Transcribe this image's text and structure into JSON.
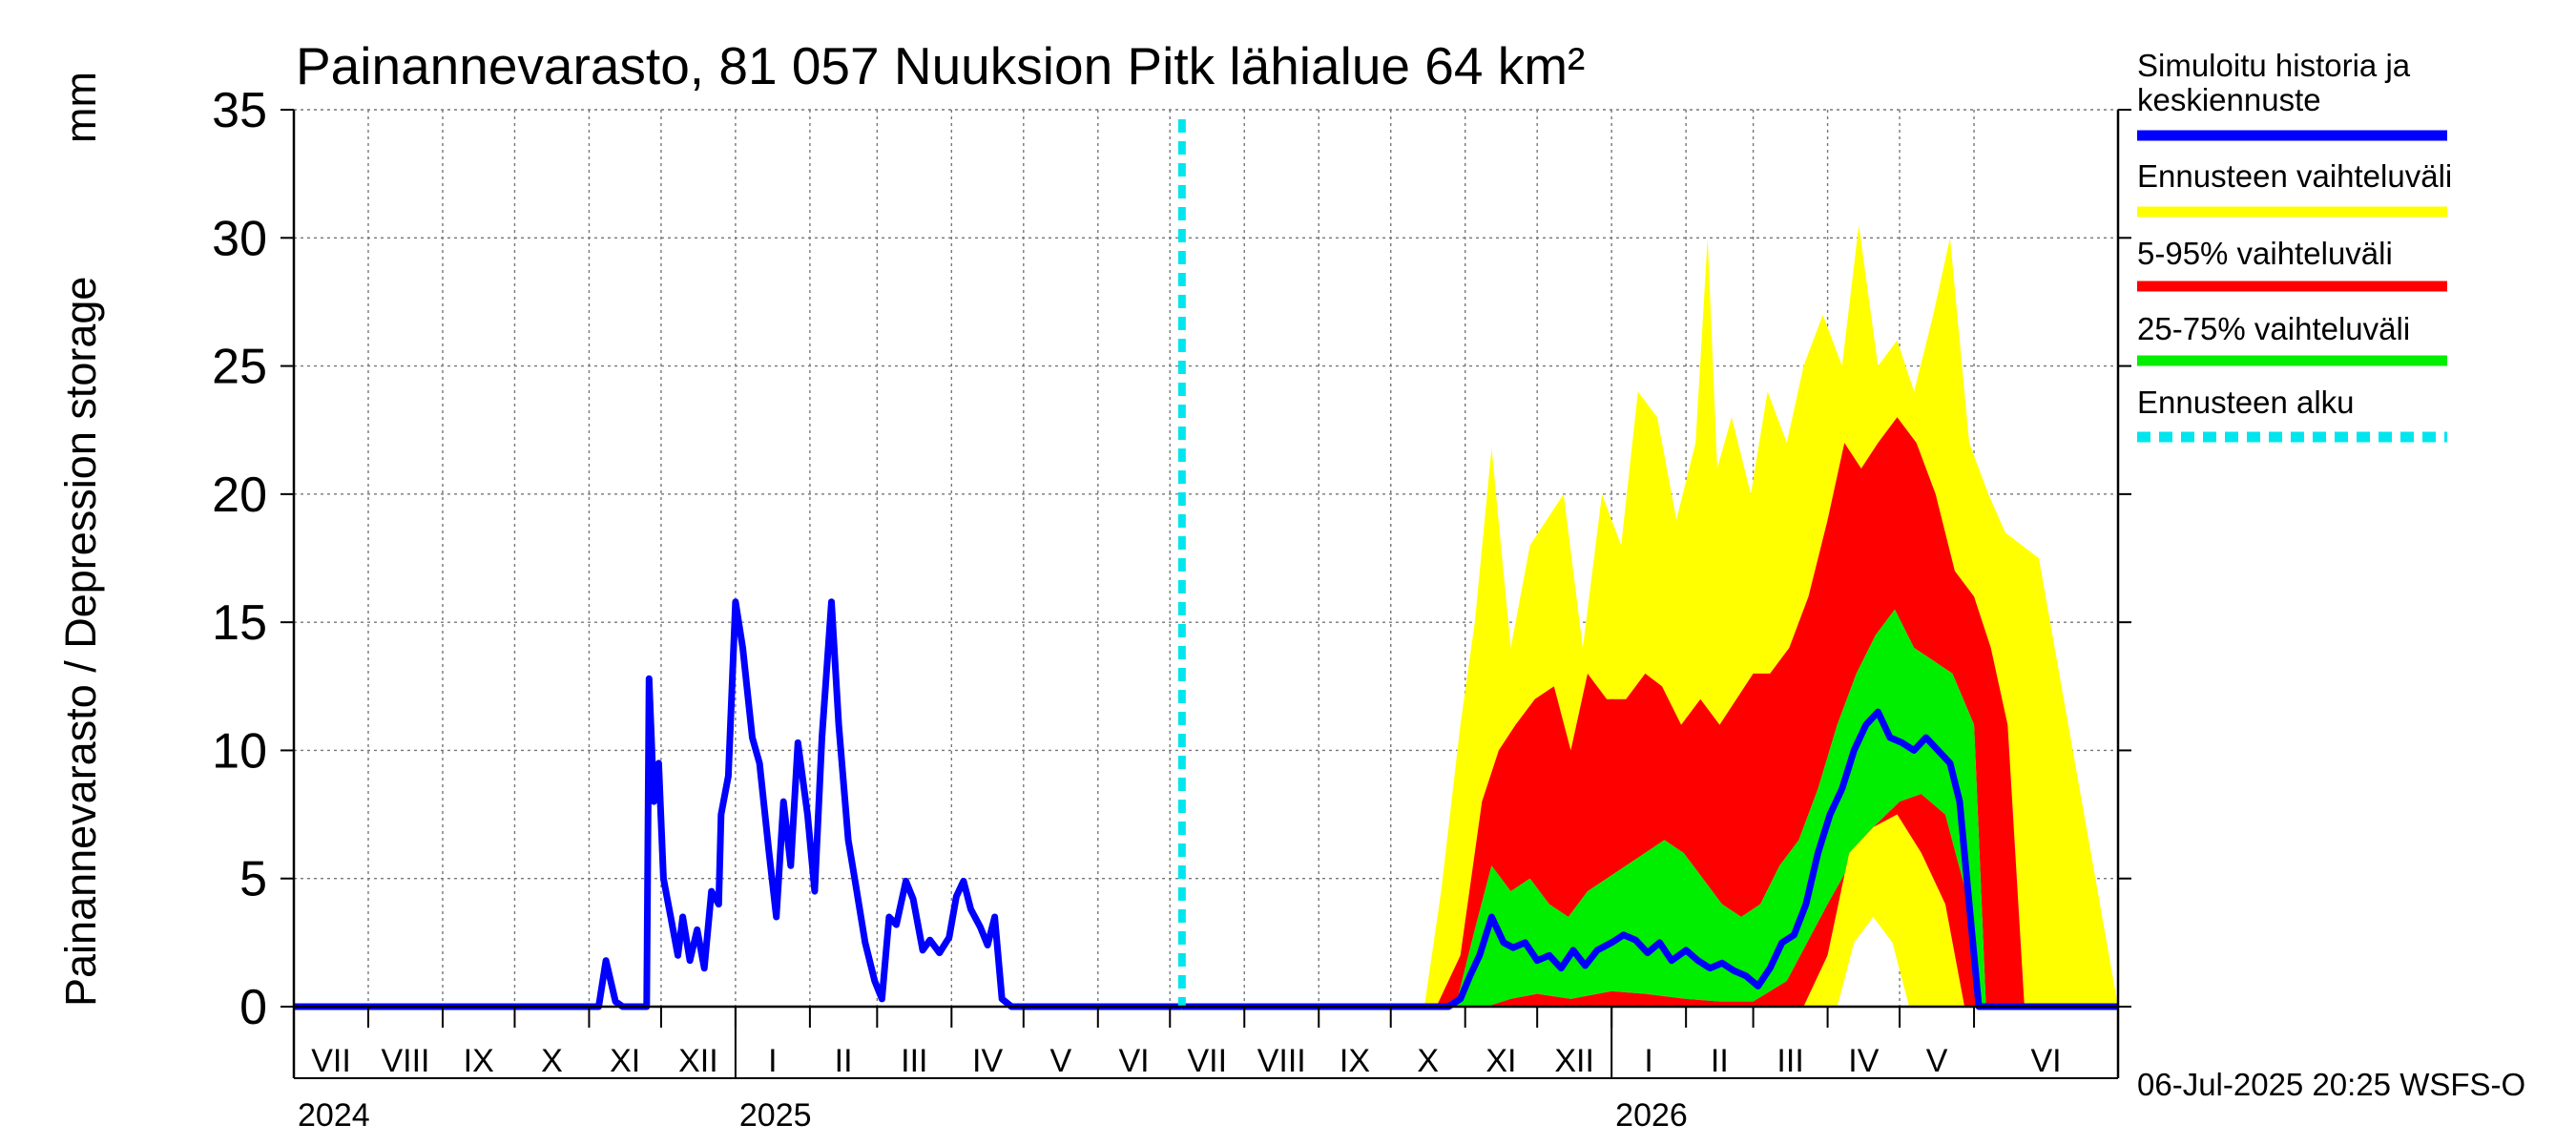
{
  "chart_data": {
    "type": "area",
    "title": "Painannevarasto, 81 057 Nuuksion Pitk lähialue 64 km²",
    "ylabel": "Painannevarasto / Depression storage",
    "yunit": "mm",
    "ylim": [
      0,
      35
    ],
    "yticks": [
      0,
      5,
      10,
      15,
      20,
      25,
      30,
      35
    ],
    "xlim": [
      "2024-07-01",
      "2026-07-31"
    ],
    "months": [
      "VII",
      "VIII",
      "IX",
      "X",
      "XI",
      "XII",
      "I",
      "II",
      "III",
      "IV",
      "V",
      "VI",
      "VII",
      "VIII",
      "IX",
      "X",
      "XI",
      "XII",
      "I",
      "II",
      "III",
      "IV",
      "V",
      "VI"
    ],
    "years": [
      {
        "label": "2024",
        "date": "2024-07-01"
      },
      {
        "label": "2025",
        "date": "2025-01-01"
      },
      {
        "label": "2026",
        "date": "2026-01-01"
      }
    ],
    "forecast_start": "2025-07-06",
    "grid": true,
    "legend_position": "right",
    "legend": [
      {
        "label": "Simuloitu historia ja keskiennuste",
        "color": "#0000ff",
        "style": "solid"
      },
      {
        "label": "Ennusteen vaihteluväli",
        "color": "#ffff00",
        "style": "solid"
      },
      {
        "label": "5-95% vaihteluväli",
        "color": "#ff0000",
        "style": "solid"
      },
      {
        "label": "25-75% vaihteluväli",
        "color": "#00ee00",
        "style": "solid"
      },
      {
        "label": "Ennusteen alku",
        "color": "#00e5ee",
        "style": "dashed"
      }
    ],
    "series": [
      {
        "name": "Simuloitu historia ja keskiennuste",
        "role": "history",
        "x": [
          "2024-07-01",
          "2024-11-05",
          "2024-11-08",
          "2024-11-12",
          "2024-11-15",
          "2024-11-25",
          "2024-11-26",
          "2024-11-28",
          "2024-11-30",
          "2024-12-02",
          "2024-12-05",
          "2024-12-08",
          "2024-12-10",
          "2024-12-13",
          "2024-12-16",
          "2024-12-19",
          "2024-12-22",
          "2024-12-25",
          "2024-12-26",
          "2024-12-29",
          "2025-01-01",
          "2025-01-04",
          "2025-01-08",
          "2025-01-11",
          "2025-01-15",
          "2025-01-18",
          "2025-01-21",
          "2025-01-24",
          "2025-01-27",
          "2025-01-31",
          "2025-02-03",
          "2025-02-06",
          "2025-02-10",
          "2025-02-13",
          "2025-02-17",
          "2025-02-20",
          "2025-02-24",
          "2025-02-28",
          "2025-03-03",
          "2025-03-06",
          "2025-03-09",
          "2025-03-13",
          "2025-03-16",
          "2025-03-20",
          "2025-03-23",
          "2025-03-27",
          "2025-03-31",
          "2025-04-03",
          "2025-04-06",
          "2025-04-09",
          "2025-04-13",
          "2025-04-16",
          "2025-04-19",
          "2025-04-22",
          "2025-04-26",
          "2025-04-28",
          "2025-05-02",
          "2025-07-06"
        ],
        "y": [
          0,
          0,
          1.8,
          0.2,
          0,
          0,
          12.8,
          8,
          9.5,
          5,
          3.5,
          2,
          3.5,
          1.8,
          3,
          1.5,
          4.5,
          4,
          7.5,
          9,
          15.8,
          14,
          10.5,
          9.5,
          6,
          3.5,
          8,
          5.5,
          10.3,
          7.5,
          4.5,
          10.5,
          15.8,
          11,
          6.5,
          4.8,
          2.5,
          1,
          0.3,
          3.5,
          3.2,
          4.9,
          4.2,
          2.2,
          2.6,
          2.1,
          2.7,
          4.3,
          4.9,
          3.8,
          3.1,
          2.4,
          3.5,
          0.3,
          0,
          0,
          0,
          0
        ]
      },
      {
        "name": "Simuloitu historia ja keskiennuste",
        "role": "median",
        "x": [
          "2025-07-06",
          "2025-10-25",
          "2025-10-30",
          "2025-11-03",
          "2025-11-07",
          "2025-11-12",
          "2025-11-17",
          "2025-11-21",
          "2025-11-26",
          "2025-12-01",
          "2025-12-06",
          "2025-12-11",
          "2025-12-16",
          "2025-12-21",
          "2025-12-26",
          "2026-01-01",
          "2026-01-06",
          "2026-01-11",
          "2026-01-16",
          "2026-01-21",
          "2026-01-26",
          "2026-02-01",
          "2026-02-06",
          "2026-02-11",
          "2026-02-16",
          "2026-02-21",
          "2026-02-26",
          "2026-03-03",
          "2026-03-08",
          "2026-03-13",
          "2026-03-18",
          "2026-03-23",
          "2026-03-28",
          "2026-04-02",
          "2026-04-07",
          "2026-04-12",
          "2026-04-17",
          "2026-04-22",
          "2026-04-27",
          "2026-05-02",
          "2026-05-07",
          "2026-05-12",
          "2026-05-17",
          "2026-05-22",
          "2026-05-26",
          "2026-05-30",
          "2026-06-03",
          "2026-07-31"
        ],
        "y": [
          0,
          0,
          0.3,
          1.2,
          2,
          3.5,
          2.5,
          2.3,
          2.5,
          1.8,
          2,
          1.5,
          2.2,
          1.6,
          2.2,
          2.5,
          2.8,
          2.6,
          2.1,
          2.5,
          1.8,
          2.2,
          1.8,
          1.5,
          1.7,
          1.4,
          1.2,
          0.8,
          1.5,
          2.5,
          2.8,
          4,
          6,
          7.5,
          8.5,
          10,
          11,
          11.5,
          10.5,
          10.3,
          10,
          10.5,
          10,
          9.5,
          8,
          4,
          0,
          0
        ]
      },
      {
        "name": "Ennusteen vaihteluväli",
        "role": "band-max",
        "x": [
          "2025-07-06",
          "2025-10-15",
          "2025-10-22",
          "2025-10-30",
          "2025-11-05",
          "2025-11-12",
          "2025-11-20",
          "2025-11-28",
          "2025-12-05",
          "2025-12-12",
          "2025-12-20",
          "2025-12-28",
          "2026-01-05",
          "2026-01-12",
          "2026-01-20",
          "2026-01-28",
          "2026-02-05",
          "2026-02-10",
          "2026-02-14",
          "2026-02-20",
          "2026-02-28",
          "2026-03-07",
          "2026-03-15",
          "2026-03-22",
          "2026-03-30",
          "2026-04-07",
          "2026-04-14",
          "2026-04-22",
          "2026-04-30",
          "2026-05-07",
          "2026-05-15",
          "2026-05-22",
          "2026-05-30",
          "2026-06-07",
          "2026-06-14",
          "2026-06-21",
          "2026-06-28",
          "2026-07-31"
        ],
        "y": [
          0,
          0,
          4.5,
          11,
          15,
          21.8,
          14,
          18,
          19,
          20,
          14,
          20,
          18,
          24,
          23,
          19,
          22,
          30,
          21,
          23,
          20,
          24,
          22,
          25,
          27,
          25,
          30.5,
          25,
          26,
          24,
          27,
          30,
          22,
          20,
          18.5,
          18,
          17.5,
          0
        ]
      },
      {
        "name": "5-95% vaihteluväli",
        "role": "band-95",
        "x": [
          "2025-07-06",
          "2025-10-20",
          "2025-10-30",
          "2025-11-08",
          "2025-11-15",
          "2025-11-22",
          "2025-11-30",
          "2025-12-08",
          "2025-12-15",
          "2025-12-22",
          "2025-12-30",
          "2026-01-07",
          "2026-01-15",
          "2026-01-22",
          "2026-01-30",
          "2026-02-07",
          "2026-02-15",
          "2026-02-22",
          "2026-03-01",
          "2026-03-08",
          "2026-03-16",
          "2026-03-24",
          "2026-04-01",
          "2026-04-08",
          "2026-04-15",
          "2026-04-22",
          "2026-04-30",
          "2026-05-08",
          "2026-05-16",
          "2026-05-24",
          "2026-06-01",
          "2026-06-08",
          "2026-06-15",
          "2026-06-22",
          "2026-07-31"
        ],
        "y": [
          0,
          0,
          2,
          8,
          10,
          11,
          12,
          12.5,
          10,
          13,
          12,
          12,
          13,
          12.5,
          11,
          12,
          11,
          12,
          13,
          13,
          14,
          16,
          19,
          22,
          21,
          22,
          23,
          22,
          20,
          17,
          16,
          14,
          11,
          0,
          0
        ]
      },
      {
        "name": "25-75% vaihteluväli",
        "role": "band-75",
        "x": [
          "2025-07-06",
          "2025-10-28",
          "2025-11-05",
          "2025-11-12",
          "2025-11-20",
          "2025-11-28",
          "2025-12-06",
          "2025-12-14",
          "2025-12-22",
          "2025-12-30",
          "2026-01-07",
          "2026-01-15",
          "2026-01-23",
          "2026-01-31",
          "2026-02-08",
          "2026-02-16",
          "2026-02-24",
          "2026-03-04",
          "2026-03-12",
          "2026-03-20",
          "2026-03-28",
          "2026-04-05",
          "2026-04-13",
          "2026-04-21",
          "2026-04-29",
          "2026-05-07",
          "2026-05-15",
          "2026-05-23",
          "2026-06-01",
          "2026-06-06",
          "2026-07-31"
        ],
        "y": [
          0,
          0,
          3,
          5.5,
          4.5,
          5,
          4,
          3.5,
          4.5,
          5,
          5.5,
          6,
          6.5,
          6,
          5,
          4,
          3.5,
          4,
          5.5,
          6.5,
          8.5,
          11,
          13,
          14.5,
          15.5,
          14,
          13.5,
          13,
          11,
          0,
          0
        ]
      },
      {
        "name": "25-75% vaihteluväli",
        "role": "band-25",
        "x": [
          "2025-07-06",
          "2025-11-10",
          "2025-11-20",
          "2025-12-01",
          "2025-12-15",
          "2026-01-01",
          "2026-01-15",
          "2026-02-01",
          "2026-02-15",
          "2026-03-01",
          "2026-03-15",
          "2026-04-01",
          "2026-04-10",
          "2026-04-20",
          "2026-05-01",
          "2026-05-10",
          "2026-05-20",
          "2026-05-30",
          "2026-06-04",
          "2026-07-31"
        ],
        "y": [
          0,
          0,
          0.3,
          0.5,
          0.3,
          0.6,
          0.5,
          0.3,
          0.2,
          0.2,
          1,
          4,
          5.5,
          7,
          8,
          8.3,
          7.5,
          4,
          0,
          0
        ]
      },
      {
        "name": "5-95% vaihteluväli",
        "role": "band-5",
        "x": [
          "2025-07-06",
          "2026-03-22",
          "2026-04-01",
          "2026-04-10",
          "2026-04-20",
          "2026-04-30",
          "2026-05-10",
          "2026-05-20",
          "2026-05-28",
          "2026-07-31"
        ],
        "y": [
          0,
          0,
          2,
          6,
          7,
          7.5,
          6,
          4,
          0,
          0
        ]
      },
      {
        "name": "Ennusteen vaihteluväli",
        "role": "band-min",
        "x": [
          "2025-07-06",
          "2026-04-05",
          "2026-04-12",
          "2026-04-20",
          "2026-04-28",
          "2026-05-05",
          "2026-07-31"
        ],
        "y": [
          0,
          0,
          2.5,
          3.5,
          2.5,
          0,
          0
        ]
      }
    ]
  },
  "footer": {
    "timestamp": "06-Jul-2025 20:25 WSFS-O"
  },
  "colors": {
    "history": "#0000ff",
    "band_max": "#ffff00",
    "band_95": "#ff0000",
    "band_75": "#00ee00",
    "forecast_line": "#00e5ee"
  }
}
